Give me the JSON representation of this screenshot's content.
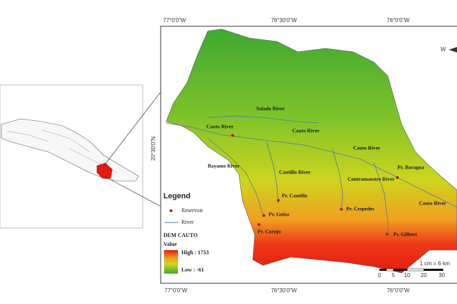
{
  "map": {
    "top_coords": [
      "77°0'0\"W",
      "76°30'0\"W",
      "76°0'0\"W"
    ],
    "bottom_coords": [
      "77°0'0\"W",
      "76°30'0\"W",
      "76°0'0\"W"
    ],
    "left_coord": "20°30'0\"N",
    "compass": "W",
    "labels": [
      "Salado River",
      "Cauto River",
      "Cauto River",
      "Cauto River",
      "Bayamo River",
      "Cautillo River",
      "Contramaestre River",
      "Cauto River",
      "Pr. Baragua",
      "Pr. Cautillo",
      "Pr. Guisa",
      "Pr. Cespedes",
      "Pr. Corojo",
      "Pr. Gilbert"
    ],
    "legend": {
      "title": "Legend",
      "reservoir": "Reservoir",
      "river": "River",
      "dem": "DEM CAUTO",
      "value": "Value",
      "high": "High : 1753",
      "low": "Low : -61"
    },
    "scale": {
      "label": "1 cm = 6 km",
      "ticks": [
        "0",
        "5",
        "10",
        "20",
        "30"
      ]
    }
  }
}
